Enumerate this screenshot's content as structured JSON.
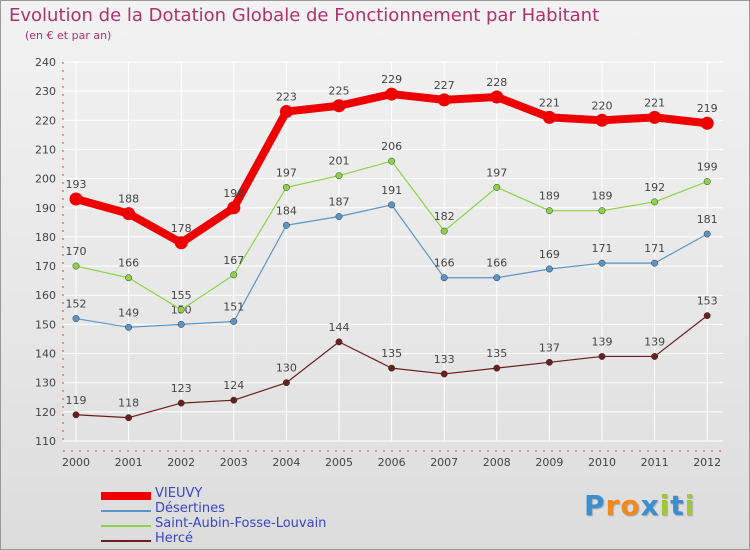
{
  "title": "Evolution de la Dotation Globale de Fonctionnement par Habitant",
  "subtitle": "(en € et par an)",
  "brand": {
    "letters": [
      "P",
      "r",
      "o",
      "x",
      "i",
      "t",
      "i"
    ],
    "colors": [
      "#3b8fd1",
      "#f08a1c",
      "#f08a1c",
      "#3b8fd1",
      "#9fc53a",
      "#3b8fd1",
      "#9fc53a"
    ]
  },
  "chart_data": {
    "type": "line",
    "categories": [
      "2000",
      "2001",
      "2002",
      "2003",
      "2004",
      "2005",
      "2006",
      "2007",
      "2008",
      "2009",
      "2010",
      "2011",
      "2012"
    ],
    "ylim": [
      110,
      240
    ],
    "yticks": [
      110,
      120,
      130,
      140,
      150,
      160,
      170,
      180,
      190,
      200,
      210,
      220,
      230,
      240
    ],
    "grid": true,
    "legend_position": "bottom-left",
    "series": [
      {
        "name": "VIEUVY",
        "color": "#ee0000",
        "emphasis": true,
        "values": [
          193,
          188,
          178,
          190,
          223,
          225,
          229,
          227,
          228,
          221,
          220,
          221,
          219
        ]
      },
      {
        "name": "Désertines",
        "color": "#5b95c8",
        "emphasis": false,
        "values": [
          152,
          149,
          150,
          151,
          184,
          187,
          191,
          166,
          166,
          169,
          171,
          171,
          181
        ]
      },
      {
        "name": "Saint-Aubin-Fosse-Louvain",
        "color": "#8cd34a",
        "emphasis": false,
        "values": [
          170,
          166,
          155,
          167,
          197,
          201,
          206,
          182,
          197,
          189,
          189,
          192,
          199
        ]
      },
      {
        "name": "Hercé",
        "color": "#6b1e1e",
        "emphasis": false,
        "values": [
          119,
          118,
          123,
          124,
          130,
          144,
          135,
          133,
          135,
          137,
          139,
          139,
          153
        ]
      }
    ]
  }
}
